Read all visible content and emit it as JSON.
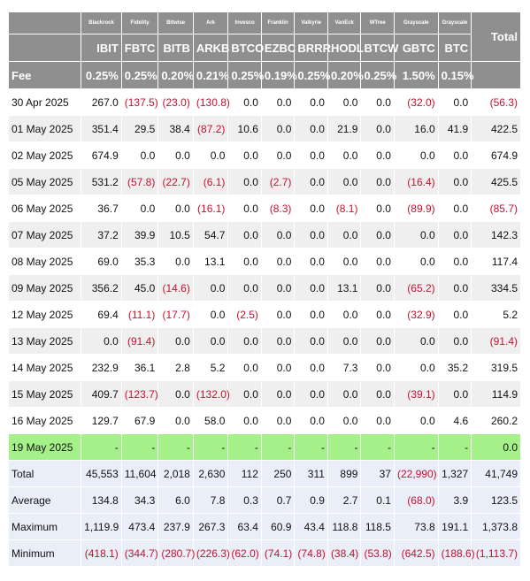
{
  "issuers": [
    "Blackrock",
    "Fidelity",
    "Bitwise",
    "Ark",
    "Invesco",
    "Franklin",
    "Valkyrie",
    "VanEck",
    "WTree",
    "Grayscale",
    "Grayscale"
  ],
  "total_label": "Total",
  "tickers": [
    "IBIT",
    "FBTC",
    "BITB",
    "ARKB",
    "BTCO",
    "EZBC",
    "BRRR",
    "HODL",
    "BTCW",
    "GBTC",
    "BTC"
  ],
  "fee_label": "Fee",
  "fees": [
    "0.25%",
    "0.25%",
    "0.20%",
    "0.21%",
    "0.25%",
    "0.19%",
    "0.25%",
    "0.20%",
    "0.25%",
    "1.50%",
    "0.15%"
  ],
  "rows": [
    {
      "date": "30 Apr 2025",
      "values": [
        "267.0",
        "(137.5)",
        "(23.0)",
        "(130.8)",
        "0.0",
        "0.0",
        "0.0",
        "0.0",
        "0.0",
        "(32.0)",
        "0.0",
        "(56.3)"
      ]
    },
    {
      "date": "01 May 2025",
      "values": [
        "351.4",
        "29.5",
        "38.4",
        "(87.2)",
        "10.6",
        "0.0",
        "0.0",
        "21.9",
        "0.0",
        "16.0",
        "41.9",
        "422.5"
      ]
    },
    {
      "date": "02 May 2025",
      "values": [
        "674.9",
        "0.0",
        "0.0",
        "0.0",
        "0.0",
        "0.0",
        "0.0",
        "0.0",
        "0.0",
        "0.0",
        "0.0",
        "674.9"
      ]
    },
    {
      "date": "05 May 2025",
      "values": [
        "531.2",
        "(57.8)",
        "(22.7)",
        "(6.1)",
        "0.0",
        "(2.7)",
        "0.0",
        "0.0",
        "0.0",
        "(16.4)",
        "0.0",
        "425.5"
      ]
    },
    {
      "date": "06 May 2025",
      "values": [
        "36.7",
        "0.0",
        "0.0",
        "(16.1)",
        "0.0",
        "(8.3)",
        "0.0",
        "(8.1)",
        "0.0",
        "(89.9)",
        "0.0",
        "(85.7)"
      ]
    },
    {
      "date": "07 May 2025",
      "values": [
        "37.2",
        "39.9",
        "10.5",
        "54.7",
        "0.0",
        "0.0",
        "0.0",
        "0.0",
        "0.0",
        "0.0",
        "0.0",
        "142.3"
      ]
    },
    {
      "date": "08 May 2025",
      "values": [
        "69.0",
        "35.3",
        "0.0",
        "13.1",
        "0.0",
        "0.0",
        "0.0",
        "0.0",
        "0.0",
        "0.0",
        "0.0",
        "117.4"
      ]
    },
    {
      "date": "09 May 2025",
      "values": [
        "356.2",
        "45.0",
        "(14.6)",
        "0.0",
        "0.0",
        "0.0",
        "0.0",
        "13.1",
        "0.0",
        "(65.2)",
        "0.0",
        "334.5"
      ]
    },
    {
      "date": "12 May 2025",
      "values": [
        "69.4",
        "(11.1)",
        "(17.7)",
        "0.0",
        "(2.5)",
        "0.0",
        "0.0",
        "0.0",
        "0.0",
        "(32.9)",
        "0.0",
        "5.2"
      ]
    },
    {
      "date": "13 May 2025",
      "values": [
        "0.0",
        "(91.4)",
        "0.0",
        "0.0",
        "0.0",
        "0.0",
        "0.0",
        "0.0",
        "0.0",
        "0.0",
        "0.0",
        "(91.4)"
      ]
    },
    {
      "date": "14 May 2025",
      "values": [
        "232.9",
        "36.1",
        "2.8",
        "5.2",
        "0.0",
        "0.0",
        "0.0",
        "7.3",
        "0.0",
        "0.0",
        "35.2",
        "319.5"
      ]
    },
    {
      "date": "15 May 2025",
      "values": [
        "409.7",
        "(123.7)",
        "0.0",
        "(132.0)",
        "0.0",
        "0.0",
        "0.0",
        "0.0",
        "0.0",
        "(39.1)",
        "0.0",
        "114.9"
      ]
    },
    {
      "date": "16 May 2025",
      "values": [
        "129.7",
        "67.9",
        "0.0",
        "58.0",
        "0.0",
        "0.0",
        "0.0",
        "0.0",
        "0.0",
        "0.0",
        "4.6",
        "260.2"
      ]
    },
    {
      "date": "19 May 2025",
      "values": [
        "-",
        "-",
        "-",
        "-",
        "-",
        "-",
        "-",
        "-",
        "-",
        "-",
        "-",
        "0.0"
      ],
      "highlight": true
    }
  ],
  "stats": [
    {
      "label": "Total",
      "values": [
        "45,553",
        "11,604",
        "2,018",
        "2,630",
        "112",
        "250",
        "311",
        "899",
        "37",
        "(22,990)",
        "1,327",
        "41,749"
      ]
    },
    {
      "label": "Average",
      "values": [
        "134.8",
        "34.3",
        "6.0",
        "7.8",
        "0.3",
        "0.7",
        "0.9",
        "2.7",
        "0.1",
        "(68.0)",
        "3.9",
        "123.5"
      ]
    },
    {
      "label": "Maximum",
      "values": [
        "1,119.9",
        "473.4",
        "237.9",
        "267.3",
        "63.4",
        "60.9",
        "43.4",
        "118.8",
        "118.5",
        "73.8",
        "191.1",
        "1,373.8"
      ]
    },
    {
      "label": "Minimum",
      "values": [
        "(418.1)",
        "(344.7)",
        "(280.7)",
        "(226.3)",
        "(62.0)",
        "(74.1)",
        "(74.8)",
        "(38.4)",
        "(53.8)",
        "(642.5)",
        "(188.6)",
        "(1,113.7)"
      ]
    }
  ],
  "colors": {
    "header_bg": "#8f8f8f",
    "negative": "#c8102e",
    "highlight_row": "#a6f08a",
    "stats_bg": "#e9eef8",
    "alt_row": "#efefef"
  }
}
